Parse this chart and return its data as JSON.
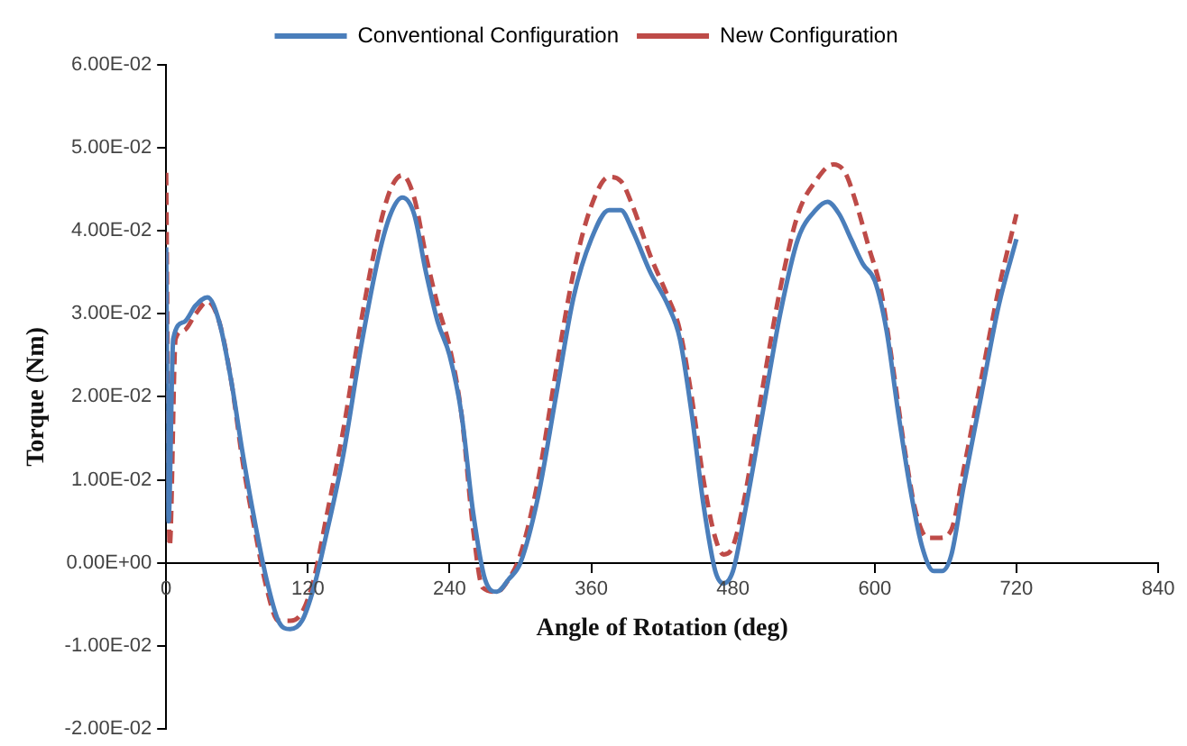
{
  "chart_data": {
    "type": "line",
    "xlabel": "Angle of Rotation (deg)",
    "ylabel": "Torque (Nm)",
    "xlim": [
      0,
      840
    ],
    "xticks": [
      0,
      120,
      240,
      360,
      480,
      600,
      720,
      840
    ],
    "ylim": [
      -0.02,
      0.06
    ],
    "yticks": [
      {
        "value": -0.02,
        "label": "-2.00E-02"
      },
      {
        "value": -0.01,
        "label": "-1.00E-02"
      },
      {
        "value": 0,
        "label": "0.00E+00"
      },
      {
        "value": 0.01,
        "label": "1.00E-02"
      },
      {
        "value": 0.02,
        "label": "2.00E-02"
      },
      {
        "value": 0.03,
        "label": "3.00E-02"
      },
      {
        "value": 0.04,
        "label": "4.00E-02"
      },
      {
        "value": 0.05,
        "label": "5.00E-02"
      },
      {
        "value": 0.06,
        "label": "6.00E-02"
      }
    ],
    "grid": false,
    "legend": "top",
    "marker": "none",
    "series": [
      {
        "name": "Conventional Configuration",
        "color": "#4a7ebb",
        "line_style": "solid",
        "x": [
          0,
          2,
          6,
          15,
          25,
          35,
          45,
          55,
          65,
          75,
          85,
          95,
          105,
          115,
          125,
          135,
          150,
          165,
          180,
          190,
          200,
          210,
          220,
          230,
          240,
          250,
          260,
          270,
          280,
          290,
          300,
          315,
          330,
          345,
          360,
          375,
          385,
          395,
          410,
          425,
          435,
          445,
          455,
          465,
          472,
          480,
          490,
          505,
          520,
          535,
          550,
          560,
          570,
          580,
          590,
          600,
          610,
          620,
          630,
          640,
          650,
          657,
          665,
          675,
          690,
          705,
          720
        ],
        "values": [
          0.038,
          0.005,
          0.027,
          0.029,
          0.031,
          0.032,
          0.029,
          0.022,
          0.013,
          0.005,
          -0.002,
          -0.007,
          -0.008,
          -0.007,
          -0.003,
          0.003,
          0.013,
          0.026,
          0.037,
          0.042,
          0.044,
          0.042,
          0.035,
          0.029,
          0.025,
          0.018,
          0.006,
          -0.002,
          -0.0035,
          -0.002,
          0.0,
          0.008,
          0.02,
          0.032,
          0.039,
          0.0425,
          0.0425,
          0.04,
          0.035,
          0.031,
          0.027,
          0.018,
          0.007,
          -0.001,
          -0.0025,
          -0.001,
          0.006,
          0.018,
          0.03,
          0.039,
          0.0425,
          0.0435,
          0.042,
          0.039,
          0.036,
          0.034,
          0.028,
          0.018,
          0.009,
          0.002,
          -0.001,
          -0.001,
          0.001,
          0.009,
          0.02,
          0.031,
          0.039
        ]
      },
      {
        "name": "New Configuration",
        "color": "#be4b48",
        "line_style": "dashed",
        "x": [
          0,
          3,
          8,
          15,
          25,
          35,
          45,
          55,
          65,
          75,
          85,
          95,
          105,
          115,
          125,
          135,
          150,
          165,
          180,
          190,
          200,
          210,
          220,
          230,
          240,
          250,
          260,
          268,
          280,
          290,
          300,
          315,
          330,
          345,
          360,
          375,
          385,
          395,
          410,
          425,
          435,
          445,
          455,
          465,
          472,
          480,
          490,
          505,
          520,
          535,
          550,
          565,
          575,
          585,
          595,
          605,
          615,
          625,
          635,
          645,
          655,
          665,
          675,
          690,
          705,
          720
        ],
        "values": [
          0.047,
          0.002,
          0.027,
          0.028,
          0.03,
          0.0315,
          0.029,
          0.022,
          0.012,
          0.004,
          -0.003,
          -0.007,
          -0.007,
          -0.006,
          -0.002,
          0.005,
          0.016,
          0.029,
          0.04,
          0.045,
          0.0467,
          0.044,
          0.037,
          0.031,
          0.026,
          0.018,
          0.004,
          -0.003,
          -0.0035,
          -0.002,
          0.001,
          0.01,
          0.023,
          0.035,
          0.043,
          0.0465,
          0.046,
          0.043,
          0.037,
          0.032,
          0.028,
          0.02,
          0.01,
          0.003,
          0.001,
          0.002,
          0.008,
          0.021,
          0.033,
          0.042,
          0.046,
          0.048,
          0.047,
          0.043,
          0.038,
          0.033,
          0.024,
          0.014,
          0.006,
          0.003,
          0.003,
          0.004,
          0.011,
          0.022,
          0.033,
          0.042
        ]
      }
    ]
  }
}
